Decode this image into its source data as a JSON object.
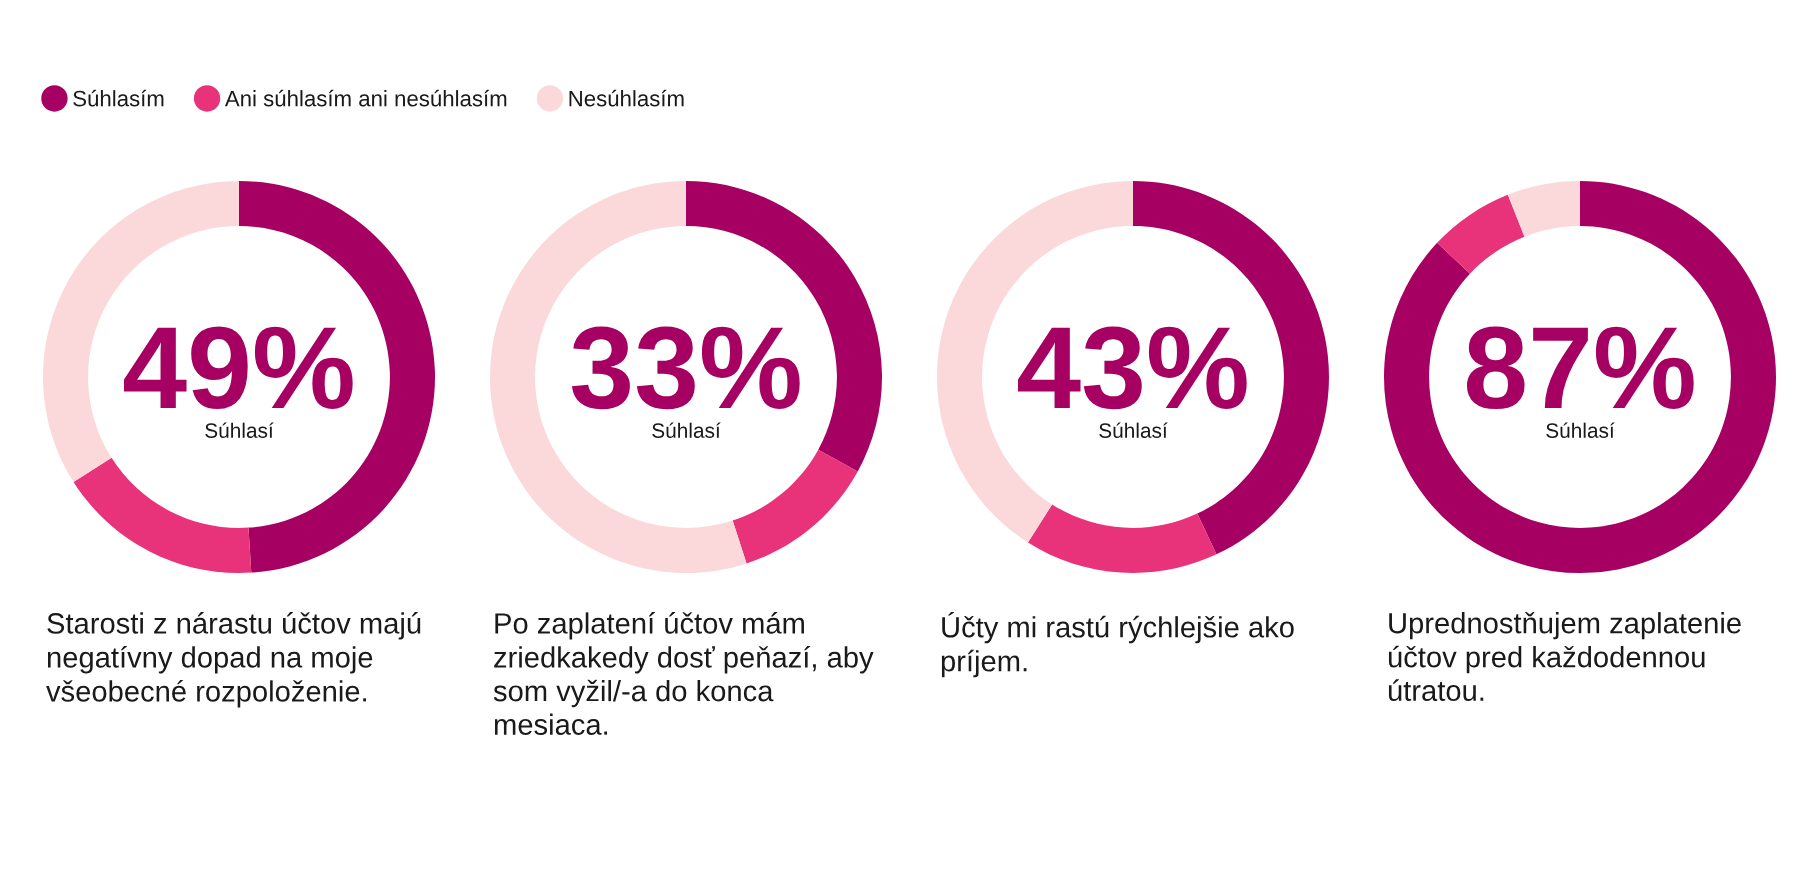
{
  "chart_data": [
    {
      "type": "donut",
      "title": "Starosti z nárastu účtov majú negatívny dopad na moje všeobecné rozpoloženie.",
      "categories": [
        "Súhlasím",
        "Ani súhlasím ani nesúhlasím",
        "Nesúhlasím"
      ],
      "values": [
        49,
        17,
        34
      ],
      "colors": [
        "#a50062",
        "#e8327a",
        "#fbd9da"
      ],
      "value_labels": [
        "49%",
        null,
        null
      ],
      "annotations": [
        "Súhlasí"
      ],
      "legend": "top"
    },
    {
      "type": "donut",
      "title": "Po zaplatení účtov mám zriedkakedy dosť peňazí, aby som vyžil/-a do konca mesiaca.",
      "categories": [
        null,
        null,
        null
      ],
      "values": [
        33,
        12,
        55
      ],
      "colors": [
        "#a50062",
        "#e8327a",
        "#fbd9da"
      ],
      "value_labels": [
        "33%",
        null,
        null
      ],
      "annotations": [
        "Súhlasí"
      ]
    },
    {
      "type": "donut",
      "title": "Účty mi rastú rýchlejšie ako príjem.",
      "categories": [
        null,
        null,
        null
      ],
      "values": [
        43,
        16,
        41
      ],
      "colors": [
        "#a50062",
        "#e8327a",
        "#fbd9da"
      ],
      "value_labels": [
        "43%",
        null,
        null
      ],
      "annotations": [
        "Súhlasí"
      ]
    },
    {
      "type": "donut",
      "title": "Uprednostňujem zaplatenie účtov pred každodennou útratou.",
      "categories": [
        null,
        null,
        null
      ],
      "values": [
        87,
        7,
        6
      ],
      "colors": [
        "#a50062",
        "#e8327a",
        "#fbd9da"
      ],
      "value_labels": [
        "87%",
        null,
        null
      ],
      "annotations": [
        "Súhlasí"
      ]
    }
  ]
}
